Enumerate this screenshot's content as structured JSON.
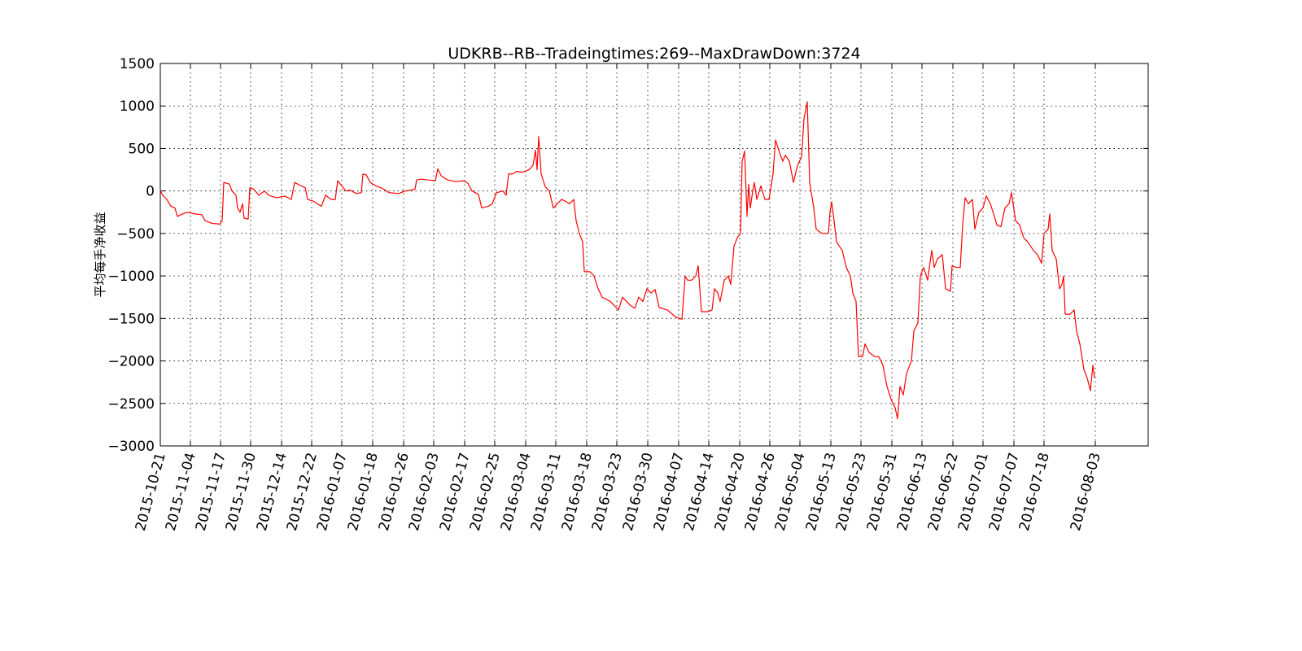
{
  "chart_data": {
    "type": "line",
    "title": "UDKRB--RB--Tradeingtimes:269--MaxDrawDown:3724",
    "y_label": "平均每手净收益",
    "color": "#ff0000",
    "grid": true,
    "xlim": [
      0,
      1214
    ],
    "ylim": [
      -3000,
      1500
    ],
    "yticks": [
      {
        "value": -3000,
        "label": "−3000"
      },
      {
        "value": -2500,
        "label": "−2500"
      },
      {
        "value": -2000,
        "label": "−2000"
      },
      {
        "value": -1500,
        "label": "−1500"
      },
      {
        "value": -1000,
        "label": "−1000"
      },
      {
        "value": -500,
        "label": "−500"
      },
      0,
      500,
      1000,
      1500
    ],
    "xticks": [
      {
        "value": 0,
        "label": "2015-10-21"
      },
      {
        "value": 37,
        "label": "2015-11-04"
      },
      {
        "value": 74,
        "label": "2015-11-17"
      },
      {
        "value": 111,
        "label": "2015-11-30"
      },
      {
        "value": 149,
        "label": "2015-12-14"
      },
      {
        "value": 186,
        "label": "2015-12-22"
      },
      {
        "value": 223,
        "label": "2016-01-07"
      },
      {
        "value": 261,
        "label": "2016-01-18"
      },
      {
        "value": 299,
        "label": "2016-01-26"
      },
      {
        "value": 336,
        "label": "2016-02-03"
      },
      {
        "value": 374,
        "label": "2016-02-17"
      },
      {
        "value": 411,
        "label": "2016-02-25"
      },
      {
        "value": 449,
        "label": "2016-03-04"
      },
      {
        "value": 486,
        "label": "2016-03-11"
      },
      {
        "value": 524,
        "label": "2016-03-18"
      },
      {
        "value": 561,
        "label": "2016-03-23"
      },
      {
        "value": 599,
        "label": "2016-03-30"
      },
      {
        "value": 637,
        "label": "2016-04-07"
      },
      {
        "value": 674,
        "label": "2016-04-14"
      },
      {
        "value": 712,
        "label": "2016-04-20"
      },
      {
        "value": 749,
        "label": "2016-04-26"
      },
      {
        "value": 786,
        "label": "2016-05-04"
      },
      {
        "value": 824,
        "label": "2016-05-13"
      },
      {
        "value": 861,
        "label": "2016-05-23"
      },
      {
        "value": 899,
        "label": "2016-05-31"
      },
      {
        "value": 936,
        "label": "2016-06-13"
      },
      {
        "value": 974,
        "label": "2016-06-22"
      },
      {
        "value": 1011,
        "label": "2016-07-01"
      },
      {
        "value": 1049,
        "label": "2016-07-07"
      },
      {
        "value": 1086,
        "label": "2016-07-18"
      },
      {
        "value": 1149,
        "label": "2016-08-03"
      }
    ],
    "x": [
      0,
      3,
      8,
      13,
      18,
      21,
      25,
      33,
      43,
      51,
      55,
      63,
      73,
      76,
      78,
      85,
      88,
      93,
      95,
      98,
      101,
      103,
      108,
      110,
      115,
      121,
      128,
      133,
      143,
      153,
      161,
      165,
      173,
      178,
      181,
      188,
      198,
      203,
      210,
      215,
      218,
      223,
      228,
      233,
      241,
      247,
      249,
      253,
      258,
      265,
      273,
      281,
      293,
      301,
      308,
      313,
      315,
      321,
      328,
      338,
      341,
      345,
      353,
      363,
      373,
      378,
      383,
      391,
      395,
      403,
      408,
      413,
      421,
      425,
      428,
      433,
      438,
      445,
      453,
      458,
      461,
      463,
      465,
      468,
      473,
      478,
      483,
      488,
      493,
      498,
      503,
      508,
      511,
      515,
      519,
      521,
      528,
      533,
      538,
      543,
      553,
      563,
      568,
      573,
      578,
      583,
      588,
      593,
      598,
      603,
      608,
      613,
      623,
      633,
      641,
      645,
      648,
      653,
      658,
      661,
      665,
      673,
      678,
      681,
      685,
      688,
      693,
      698,
      701,
      705,
      709,
      713,
      715,
      718,
      721,
      723,
      725,
      728,
      730,
      733,
      738,
      743,
      748,
      753,
      756,
      761,
      765,
      768,
      773,
      778,
      783,
      788,
      791,
      795,
      798,
      803,
      806,
      813,
      821,
      823,
      825,
      828,
      831,
      838,
      843,
      848,
      851,
      855,
      858,
      863,
      866,
      871,
      878,
      883,
      888,
      893,
      898,
      903,
      906,
      909,
      913,
      917,
      923,
      926,
      931,
      934,
      938,
      943,
      948,
      951,
      955,
      961,
      965,
      971,
      973,
      978,
      983,
      986,
      989,
      993,
      998,
      1001,
      1006,
      1011,
      1015,
      1020,
      1025,
      1028,
      1033,
      1038,
      1043,
      1046,
      1051,
      1056,
      1061,
      1066,
      1073,
      1078,
      1083,
      1086,
      1091,
      1093,
      1096,
      1101,
      1105,
      1108,
      1110,
      1112,
      1118,
      1123,
      1126,
      1130,
      1135,
      1139,
      1143,
      1146,
      1148
    ],
    "values": [
      0,
      -50,
      -100,
      -180,
      -200,
      -300,
      -280,
      -250,
      -270,
      -280,
      -350,
      -380,
      -390,
      -350,
      100,
      80,
      0,
      -50,
      -200,
      -250,
      -150,
      -320,
      -330,
      40,
      20,
      -50,
      0,
      -50,
      -80,
      -60,
      -100,
      100,
      60,
      40,
      -100,
      -120,
      -180,
      -50,
      -100,
      -100,
      120,
      60,
      0,
      10,
      -30,
      -20,
      200,
      190,
      100,
      60,
      30,
      -20,
      -30,
      0,
      10,
      20,
      130,
      140,
      130,
      120,
      260,
      180,
      130,
      110,
      120,
      90,
      0,
      -40,
      -200,
      -180,
      -150,
      -20,
      0,
      -50,
      200,
      200,
      230,
      220,
      250,
      300,
      480,
      250,
      640,
      200,
      50,
      0,
      -200,
      -150,
      -100,
      -120,
      -150,
      -100,
      -350,
      -500,
      -600,
      -950,
      -950,
      -1000,
      -1150,
      -1250,
      -1300,
      -1400,
      -1250,
      -1300,
      -1350,
      -1380,
      -1250,
      -1300,
      -1150,
      -1200,
      -1160,
      -1370,
      -1400,
      -1480,
      -1510,
      -1000,
      -1050,
      -1050,
      -1000,
      -880,
      -1420,
      -1420,
      -1400,
      -1150,
      -1200,
      -1300,
      -1050,
      -1000,
      -1100,
      -650,
      -550,
      -500,
      350,
      470,
      -300,
      80,
      -200,
      0,
      100,
      -100,
      60,
      -100,
      -100,
      200,
      600,
      450,
      350,
      420,
      350,
      100,
      300,
      400,
      850,
      1050,
      100,
      -200,
      -450,
      -500,
      -500,
      -250,
      -130,
      -350,
      -600,
      -700,
      -900,
      -1000,
      -1200,
      -1300,
      -1950,
      -1950,
      -1800,
      -1900,
      -1950,
      -1950,
      -2050,
      -2300,
      -2450,
      -2550,
      -2680,
      -2300,
      -2400,
      -2150,
      -2000,
      -1650,
      -1550,
      -1000,
      -900,
      -1050,
      -700,
      -900,
      -800,
      -750,
      -1150,
      -1180,
      -880,
      -900,
      -900,
      -400,
      -80,
      -150,
      -100,
      -450,
      -250,
      -200,
      -60,
      -150,
      -300,
      -400,
      -420,
      -200,
      -150,
      -20,
      -350,
      -400,
      -550,
      -600,
      -700,
      -750,
      -850,
      -500,
      -450,
      -270,
      -700,
      -800,
      -1150,
      -1100,
      -1000,
      -1450,
      -1450,
      -1400,
      -1650,
      -1800,
      -2100,
      -2200,
      -2350,
      -2050,
      -2200
    ]
  }
}
